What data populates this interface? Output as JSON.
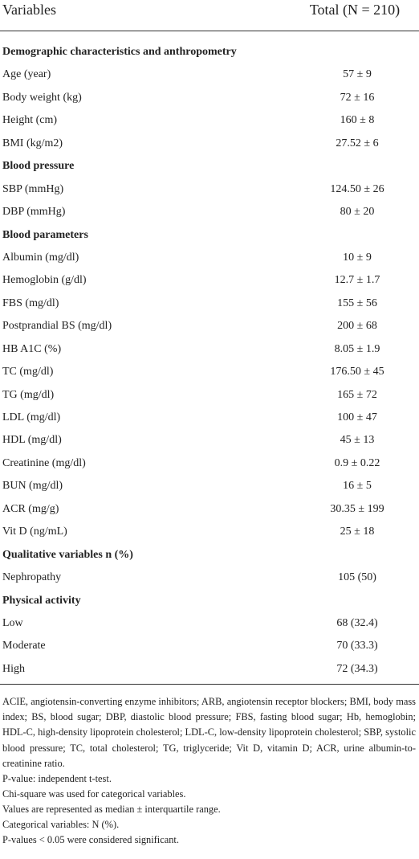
{
  "table": {
    "header": [
      "Variables",
      "Total (N = 210)"
    ],
    "sections": [
      {
        "title": "Demographic characteristics and anthropometry",
        "rows": [
          [
            "Age (year)",
            "57 ± 9"
          ],
          [
            "Body weight (kg)",
            "72 ± 16"
          ],
          [
            "Height (cm)",
            "160 ± 8"
          ],
          [
            "BMI (kg/m2)",
            "27.52 ± 6"
          ]
        ]
      },
      {
        "title": "Blood pressure",
        "rows": [
          [
            "SBP (mmHg)",
            "124.50 ± 26"
          ],
          [
            "DBP (mmHg)",
            "80 ± 20"
          ]
        ]
      },
      {
        "title": "Blood parameters",
        "rows": [
          [
            "Albumin (mg/dl)",
            "10 ± 9"
          ],
          [
            "Hemoglobin (g/dl)",
            "12.7 ± 1.7"
          ],
          [
            "FBS (mg/dl)",
            "155 ± 56"
          ],
          [
            "Postprandial BS (mg/dl)",
            "200 ± 68"
          ],
          [
            "HB A1C (%)",
            "8.05 ± 1.9"
          ],
          [
            "TC (mg/dl)",
            "176.50 ± 45"
          ],
          [
            "TG (mg/dl)",
            "165 ± 72"
          ],
          [
            "LDL (mg/dl)",
            "100 ± 47"
          ],
          [
            "HDL (mg/dl)",
            "45 ± 13"
          ],
          [
            "Creatinine (mg/dl)",
            "0.9 ± 0.22"
          ],
          [
            "BUN (mg/dl)",
            "16 ± 5"
          ],
          [
            "ACR (mg/g)",
            "30.35 ± 199"
          ],
          [
            "Vit D (ng/mL)",
            "25 ± 18"
          ]
        ]
      },
      {
        "title": "Qualitative variables n (%)",
        "rows": [
          [
            "Nephropathy",
            "105 (50)"
          ]
        ]
      },
      {
        "title": "Physical activity",
        "rows": [
          [
            "Low",
            "68 (32.4)"
          ],
          [
            "Moderate",
            "70 (33.3)"
          ],
          [
            "High",
            "72 (34.3)"
          ]
        ]
      }
    ]
  },
  "notes": [
    "ACIE, angiotensin-converting enzyme inhibitors; ARB, angiotensin receptor blockers; BMI, body mass index; BS, blood sugar; DBP, diastolic blood pressure; FBS, fasting blood sugar; Hb, hemoglobin; HDL-C, high-density lipoprotein cholesterol; LDL-C, low-density lipoprotein cholesterol; SBP, systolic blood pressure; TC, total cholesterol; TG, triglyceride; Vit D, vitamin D; ACR, urine albumin-to-creatinine ratio.",
    "P-value: independent t-test.",
    "Chi-square was used for categorical variables.",
    "Values are represented as median ± interquartile range.",
    "Categorical variables: N (%).",
    "P-values < 0.05 were considered significant."
  ]
}
